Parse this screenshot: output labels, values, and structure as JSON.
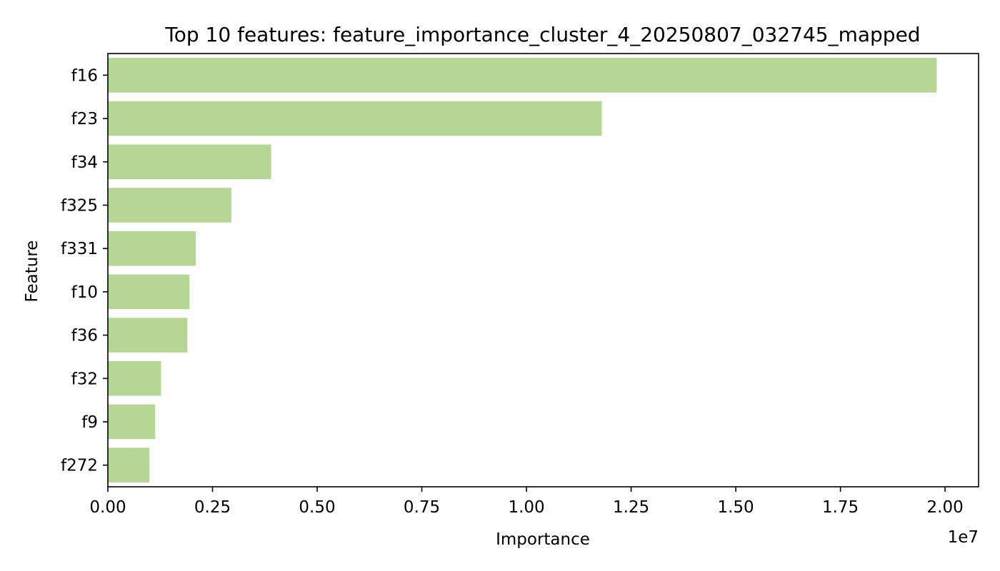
{
  "chart_data": {
    "type": "bar",
    "orientation": "horizontal",
    "title": "Top 10 features: feature_importance_cluster_4_20250807_032745_mapped",
    "xlabel": "Importance",
    "ylabel": "Feature",
    "x_scale_label": "1e7",
    "xlim": [
      0,
      20800000
    ],
    "xticks": [
      0,
      2500000,
      5000000,
      7500000,
      10000000,
      12500000,
      15000000,
      17500000,
      20000000
    ],
    "xtick_labels": [
      "0.00",
      "0.25",
      "0.50",
      "0.75",
      "1.00",
      "1.25",
      "1.50",
      "1.75",
      "2.00"
    ],
    "categories": [
      "f16",
      "f23",
      "f34",
      "f325",
      "f331",
      "f10",
      "f36",
      "f32",
      "f9",
      "f272"
    ],
    "values": [
      19800000,
      11800000,
      3900000,
      2950000,
      2100000,
      1950000,
      1900000,
      1270000,
      1130000,
      990000
    ],
    "bar_color": "#b5d694",
    "grid": false,
    "legend": "none"
  }
}
